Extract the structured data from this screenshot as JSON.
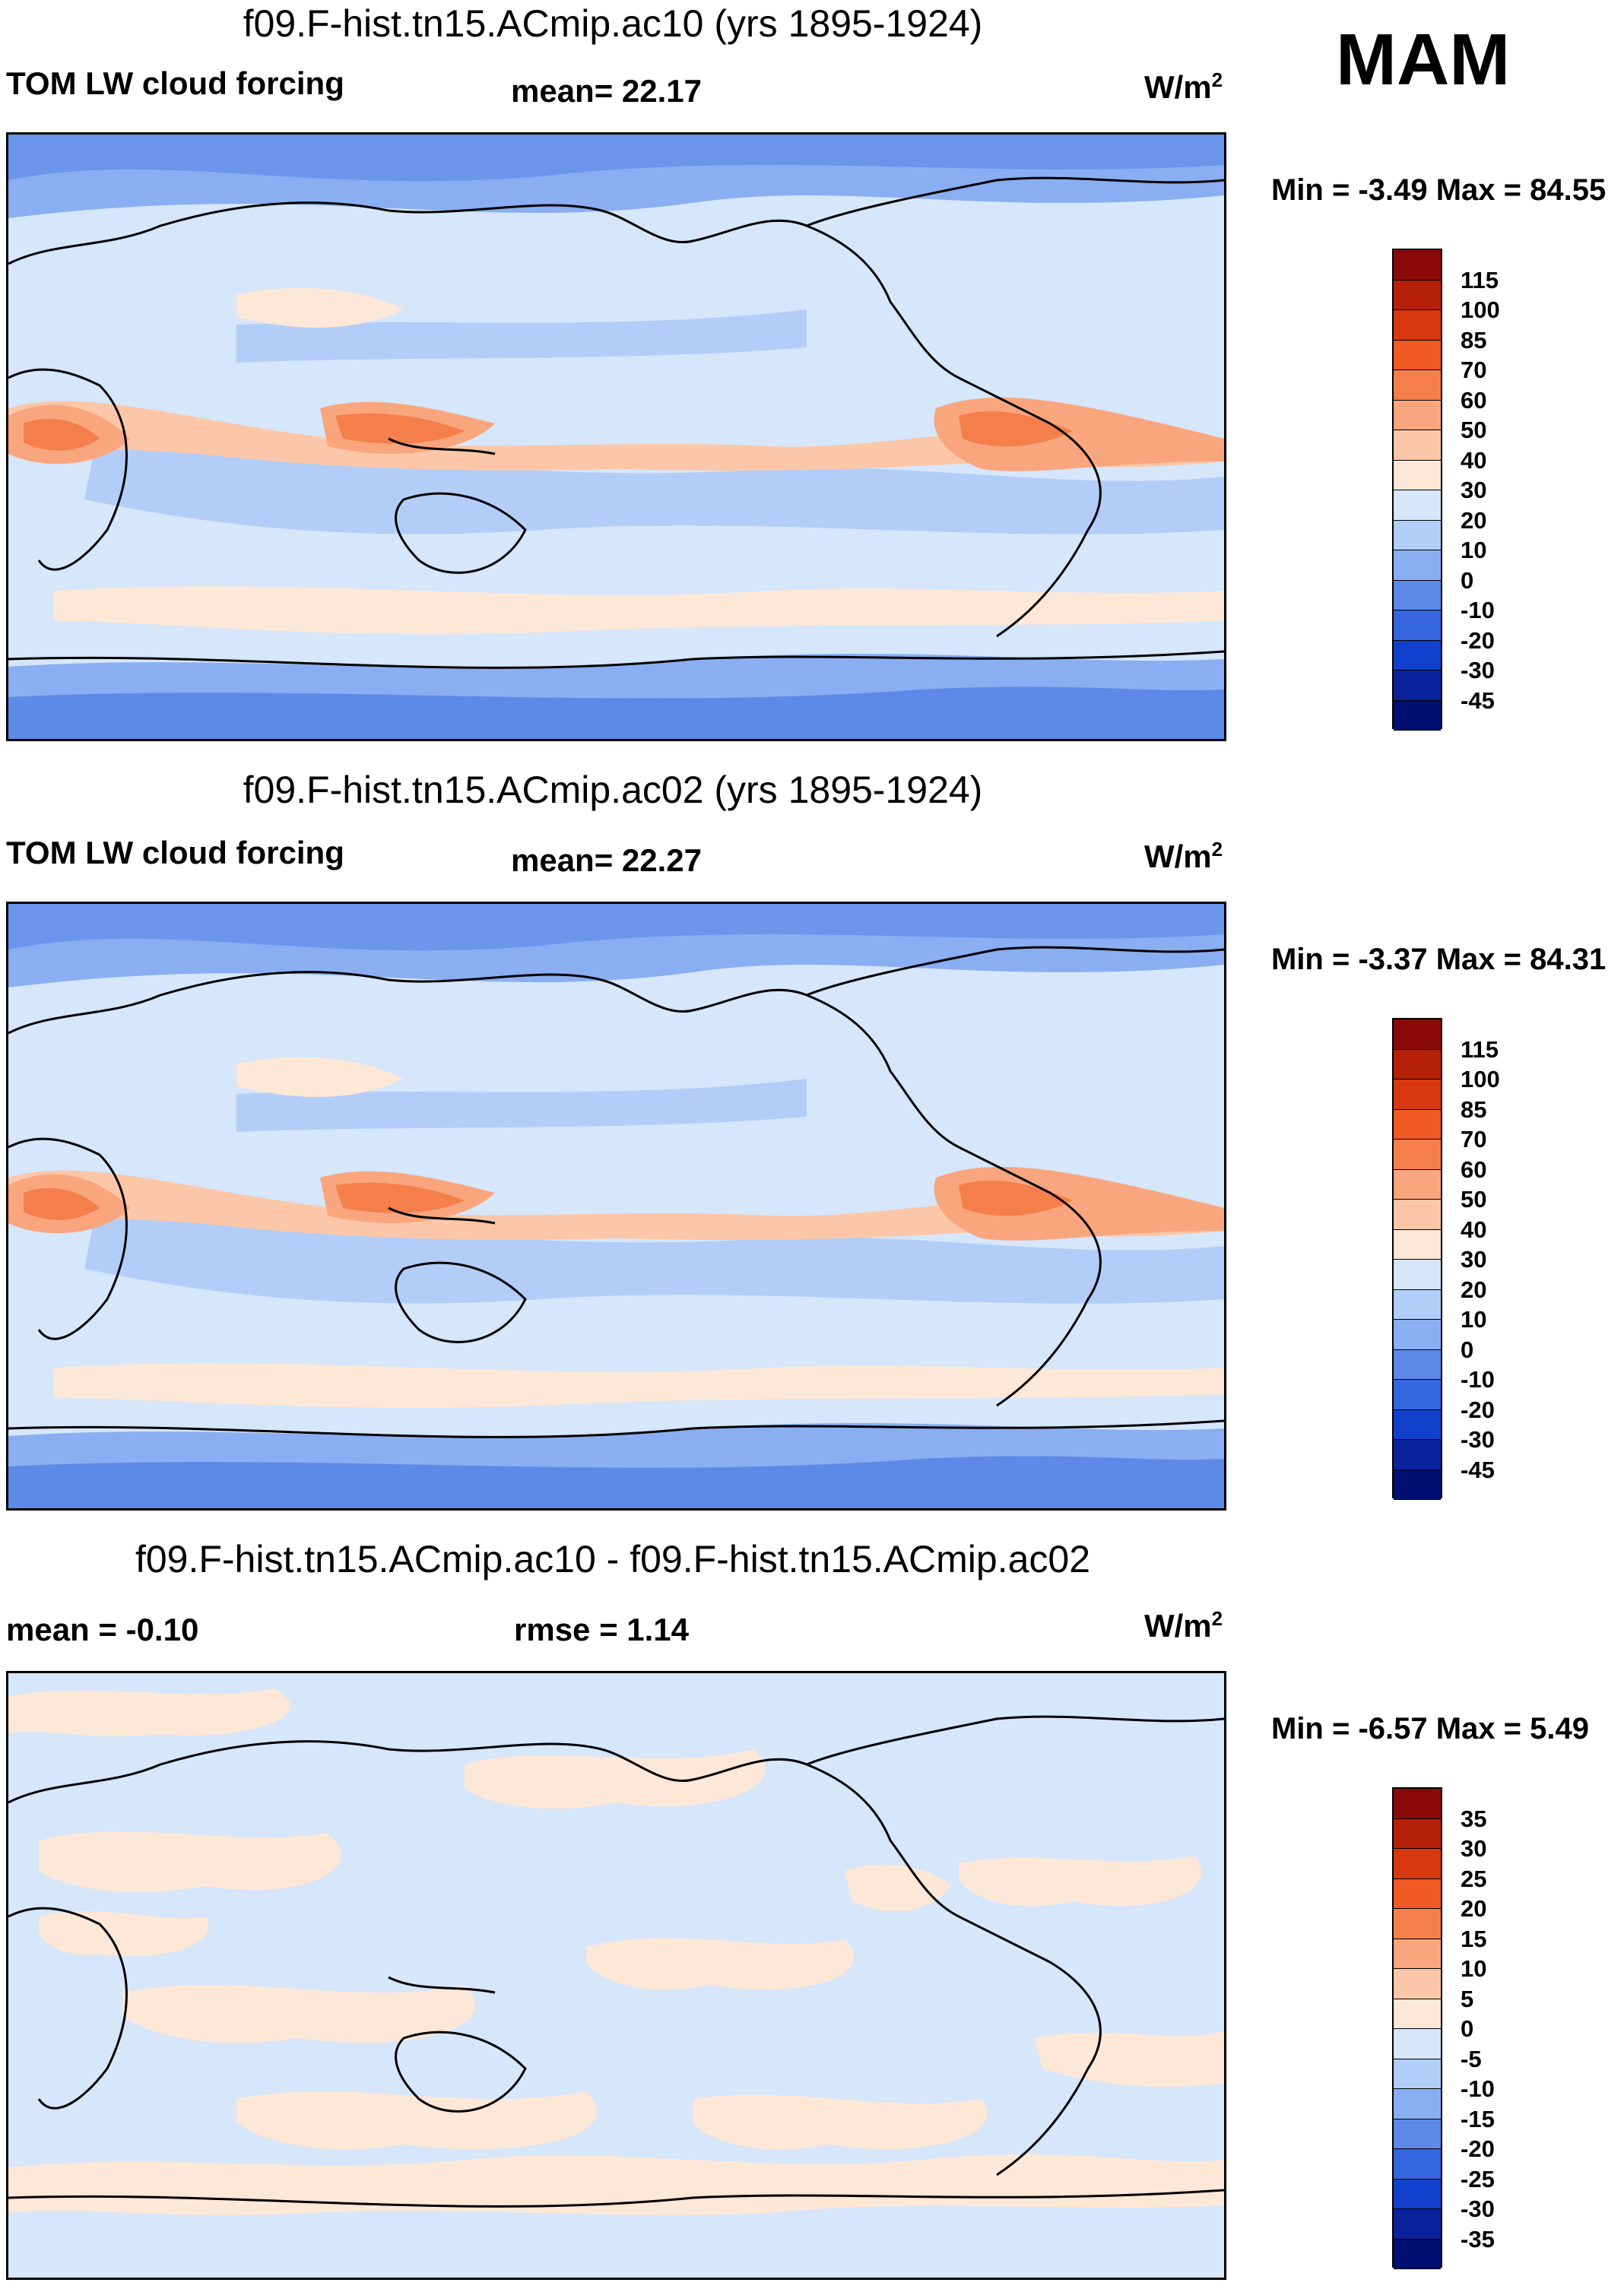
{
  "season": "MAM",
  "units_label": "W/m",
  "units_exp": "2",
  "panels": [
    {
      "title": "f09.F-hist.tn15.ACmip.ac10 (yrs 1895-1924)",
      "variable": "TOM LW cloud forcing",
      "stat1": "mean=  22.17",
      "stat2": "",
      "minmax": "Min =  -3.49 Max =  84.55",
      "colorbar": {
        "labels": [
          "115",
          "100",
          "85",
          "70",
          "60",
          "50",
          "40",
          "30",
          "20",
          "10",
          "0",
          "-10",
          "-20",
          "-30",
          "-45"
        ],
        "colors": [
          "#8a0a0a",
          "#b52008",
          "#d8380e",
          "#f05a24",
          "#f57f4b",
          "#f9a67e",
          "#fcc7a8",
          "#fde7d6",
          "#d6e6fb",
          "#b2cdf8",
          "#8aaef2",
          "#5d8ae8",
          "#3566e0",
          "#1240cc",
          "#0a239c",
          "#001070"
        ]
      }
    },
    {
      "title": "f09.F-hist.tn15.ACmip.ac02 (yrs 1895-1924)",
      "variable": "TOM LW cloud forcing",
      "stat1": "mean=  22.27",
      "stat2": "",
      "minmax": "Min =  -3.37 Max =  84.31",
      "colorbar": {
        "labels": [
          "115",
          "100",
          "85",
          "70",
          "60",
          "50",
          "40",
          "30",
          "20",
          "10",
          "0",
          "-10",
          "-20",
          "-30",
          "-45"
        ],
        "colors": [
          "#8a0a0a",
          "#b52008",
          "#d8380e",
          "#f05a24",
          "#f57f4b",
          "#f9a67e",
          "#fcc7a8",
          "#fde7d6",
          "#d6e6fb",
          "#b2cdf8",
          "#8aaef2",
          "#5d8ae8",
          "#3566e0",
          "#1240cc",
          "#0a239c",
          "#001070"
        ]
      }
    },
    {
      "title": "f09.F-hist.tn15.ACmip.ac10 - f09.F-hist.tn15.ACmip.ac02",
      "variable": "mean =  -0.10",
      "stat1": "rmse =   1.14",
      "stat2": "",
      "minmax": "Min =  -6.57 Max =   5.49",
      "colorbar": {
        "labels": [
          "35",
          "30",
          "25",
          "20",
          "15",
          "10",
          "5",
          "0",
          "-5",
          "-10",
          "-15",
          "-20",
          "-25",
          "-30",
          "-35"
        ],
        "colors": [
          "#8a0a0a",
          "#b52008",
          "#d8380e",
          "#f05a24",
          "#f57f4b",
          "#f9a67e",
          "#fcc7a8",
          "#fde7d6",
          "#d6e6fb",
          "#b2cdf8",
          "#8aaef2",
          "#5d8ae8",
          "#3566e0",
          "#1240cc",
          "#0a239c",
          "#001070"
        ]
      }
    }
  ]
}
